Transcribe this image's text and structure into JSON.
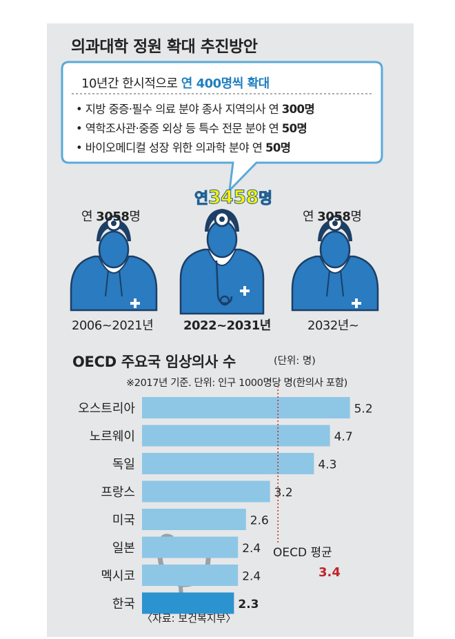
{
  "header": {
    "title": "의과대학 정원 확대 추진방안"
  },
  "plan": {
    "headline_prefix": "10년간 한시적으로 ",
    "headline_highlight": "연 400명씩 확대",
    "bullets": [
      {
        "text": "• 지방 중증·필수 의료 분야 종사 지역의사 연 ",
        "value": "300명"
      },
      {
        "text": "• 역학조사관·중증 외상 등 특수 전문 분야 연 ",
        "value": "50명"
      },
      {
        "text": "• 바이오메디컬 성장 위한 의과학 분야 연 ",
        "value": "50명"
      }
    ]
  },
  "periods": [
    {
      "count_prefix": "연 ",
      "count_value": "3058",
      "count_unit": "명",
      "label": "2006~2021년"
    },
    {
      "count_prefix": "연",
      "count_value": "3458",
      "count_unit": "명",
      "label": "2022~2031년"
    },
    {
      "count_prefix": "연 ",
      "count_value": "3058",
      "count_unit": "명",
      "label": "2032년~"
    }
  ],
  "chart_data": {
    "type": "bar",
    "orientation": "horizontal",
    "title": "OECD 주요국 임상의사 수",
    "unit": "(단위: 명)",
    "note": "※2017년 기준. 단위: 인구 1000명당 명(한의사 포함)",
    "categories": [
      "오스트리아",
      "노르웨이",
      "독일",
      "프랑스",
      "미국",
      "일본",
      "멕시코",
      "한국"
    ],
    "values": [
      5.2,
      4.7,
      4.3,
      3.2,
      2.6,
      2.4,
      2.4,
      2.3
    ],
    "value_labels": [
      "5.2",
      "4.7",
      "4.3",
      "3.2",
      "2.6",
      "2.4",
      "2.4",
      "2.3"
    ],
    "highlight": "한국",
    "reference_line": {
      "label": "OECD 평균",
      "value": 3.4,
      "value_label": "3.4"
    },
    "colors": {
      "bar": "#8ec6e6",
      "highlight_bar": "#2b93cf",
      "reference": "#c0242a"
    }
  },
  "source": "〈자료: 보건복지부〉",
  "colors": {
    "figure": "#2a7bc0",
    "figure_outline": "#1c3f66",
    "accent_yellow": "#fff100",
    "panel": "#e6e7e8"
  }
}
